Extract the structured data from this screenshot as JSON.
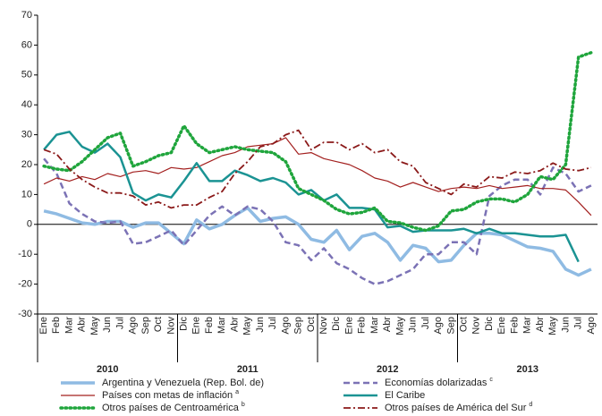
{
  "chart_data": {
    "type": "line",
    "categories": [
      "Ene",
      "Feb",
      "Mar",
      "Abr",
      "May",
      "Jun",
      "Jul",
      "Ago",
      "Sep",
      "Oct",
      "Nov",
      "Dic",
      "Ene",
      "Feb",
      "Mar",
      "Abr",
      "May",
      "Jun",
      "Jul",
      "Ago",
      "Sep",
      "Oct",
      "Nov",
      "Dic",
      "Ene",
      "Feb",
      "Mar",
      "Abr",
      "May",
      "Jun",
      "Jul",
      "Ago",
      "Sep",
      "Oct",
      "Nov",
      "Dic",
      "Ene",
      "Feb",
      "Mar",
      "Abr",
      "May",
      "Jun",
      "Jul",
      "Ago"
    ],
    "years": [
      "2010",
      "2011",
      "2012",
      "2013"
    ],
    "ylim": [
      -30,
      70
    ],
    "yticks": [
      -30,
      -20,
      -10,
      0,
      10,
      20,
      30,
      40,
      50,
      60,
      70
    ],
    "series": [
      {
        "name": "Argentina y Venezuela (Rep. Bol. de)",
        "color": "#8fbbe3",
        "style": "solid",
        "width": 3.5,
        "values": [
          4.5,
          3.5,
          2,
          0.5,
          0,
          1,
          1,
          -1,
          0.5,
          0.5,
          -3,
          -6.5,
          1.5,
          -1.5,
          0,
          3,
          5.5,
          1,
          2,
          2.5,
          0,
          -5,
          -6,
          -2,
          -8.5,
          -4,
          -3,
          -6,
          -12,
          -7,
          -8,
          -12.5,
          -12,
          -7,
          -3,
          -3,
          -3.5,
          -5.5,
          -7.5,
          -8,
          -9,
          -15,
          -17,
          -15
        ]
      },
      {
        "name": "Economías dolarizadas",
        "note": "c",
        "color": "#7b72b5",
        "style": "dashed",
        "width": 2.5,
        "values": [
          22,
          17,
          7,
          3.5,
          1,
          0.5,
          1,
          -6.5,
          -6,
          -4,
          -2,
          -7,
          -2,
          3,
          6,
          3,
          6,
          5,
          1,
          -6,
          -7,
          -12,
          -8,
          -13,
          -15,
          -18,
          -20,
          -19,
          -17,
          -15,
          -10,
          -10,
          -6,
          -6,
          -10,
          9.5,
          13,
          15,
          15,
          10,
          19,
          17,
          11,
          13
        ]
      },
      {
        "name": "Países con metas de inflación",
        "note": "a",
        "color": "#a3201f",
        "style": "solid",
        "width": 1.2,
        "values": [
          13.5,
          15.5,
          14.5,
          16,
          15,
          17,
          16,
          17.5,
          18,
          17,
          19,
          18.5,
          19,
          21,
          23,
          24,
          26,
          26.5,
          27,
          29,
          23.5,
          24,
          22,
          21,
          20,
          18,
          15.5,
          14.5,
          12.5,
          14,
          12.5,
          11,
          12,
          12.5,
          12,
          13,
          12,
          12.5,
          13,
          12,
          12,
          11.5,
          7.5,
          3
        ]
      },
      {
        "name": "El Caribe",
        "color": "#1b9393",
        "style": "solid",
        "width": 2.5,
        "values": [
          25,
          30,
          31,
          26,
          24,
          27,
          22.5,
          10.5,
          8,
          10,
          9,
          14.5,
          20.5,
          14.5,
          14.5,
          18,
          16.5,
          14.5,
          15.5,
          14,
          10,
          11.5,
          8,
          10,
          5.5,
          5.5,
          5,
          -1,
          -0.5,
          -2.5,
          -2,
          -2,
          -2,
          -1.5,
          -3,
          -1.5,
          -3,
          -3,
          -3.5,
          -4,
          -4,
          -3.5,
          -12.5,
          null
        ]
      },
      {
        "name": "Otros países de Centroamérica",
        "note": "b",
        "color": "#1fa53c",
        "style": "dotted",
        "width": 3.5,
        "values": [
          19.5,
          18.5,
          18,
          21,
          25,
          29,
          30.5,
          19.5,
          21,
          23,
          24,
          33,
          27,
          24,
          25,
          26,
          25,
          24.5,
          24,
          21,
          12,
          10,
          8,
          5,
          3.5,
          4,
          5.5,
          1,
          0.5,
          -1,
          -2,
          -0.5,
          4.5,
          5,
          7.5,
          8.5,
          8.5,
          7.5,
          10,
          16,
          15,
          20,
          56,
          57.5
        ]
      },
      {
        "name": "Otros países de América del Sur",
        "note": "d",
        "color": "#8b1a1a",
        "style": "dashdot",
        "width": 1.8,
        "values": [
          25,
          23.5,
          18.5,
          15,
          12.5,
          10.5,
          10.5,
          9.5,
          6.5,
          7.5,
          5.5,
          6.5,
          6.5,
          9,
          11,
          17,
          21,
          26,
          27,
          30,
          31.5,
          25,
          27.5,
          27.5,
          25,
          27,
          24,
          25,
          21,
          19.5,
          14,
          12,
          10,
          13.5,
          12.5,
          16,
          15.5,
          17.5,
          17,
          18,
          20.5,
          18.5,
          18,
          19
        ]
      }
    ]
  }
}
